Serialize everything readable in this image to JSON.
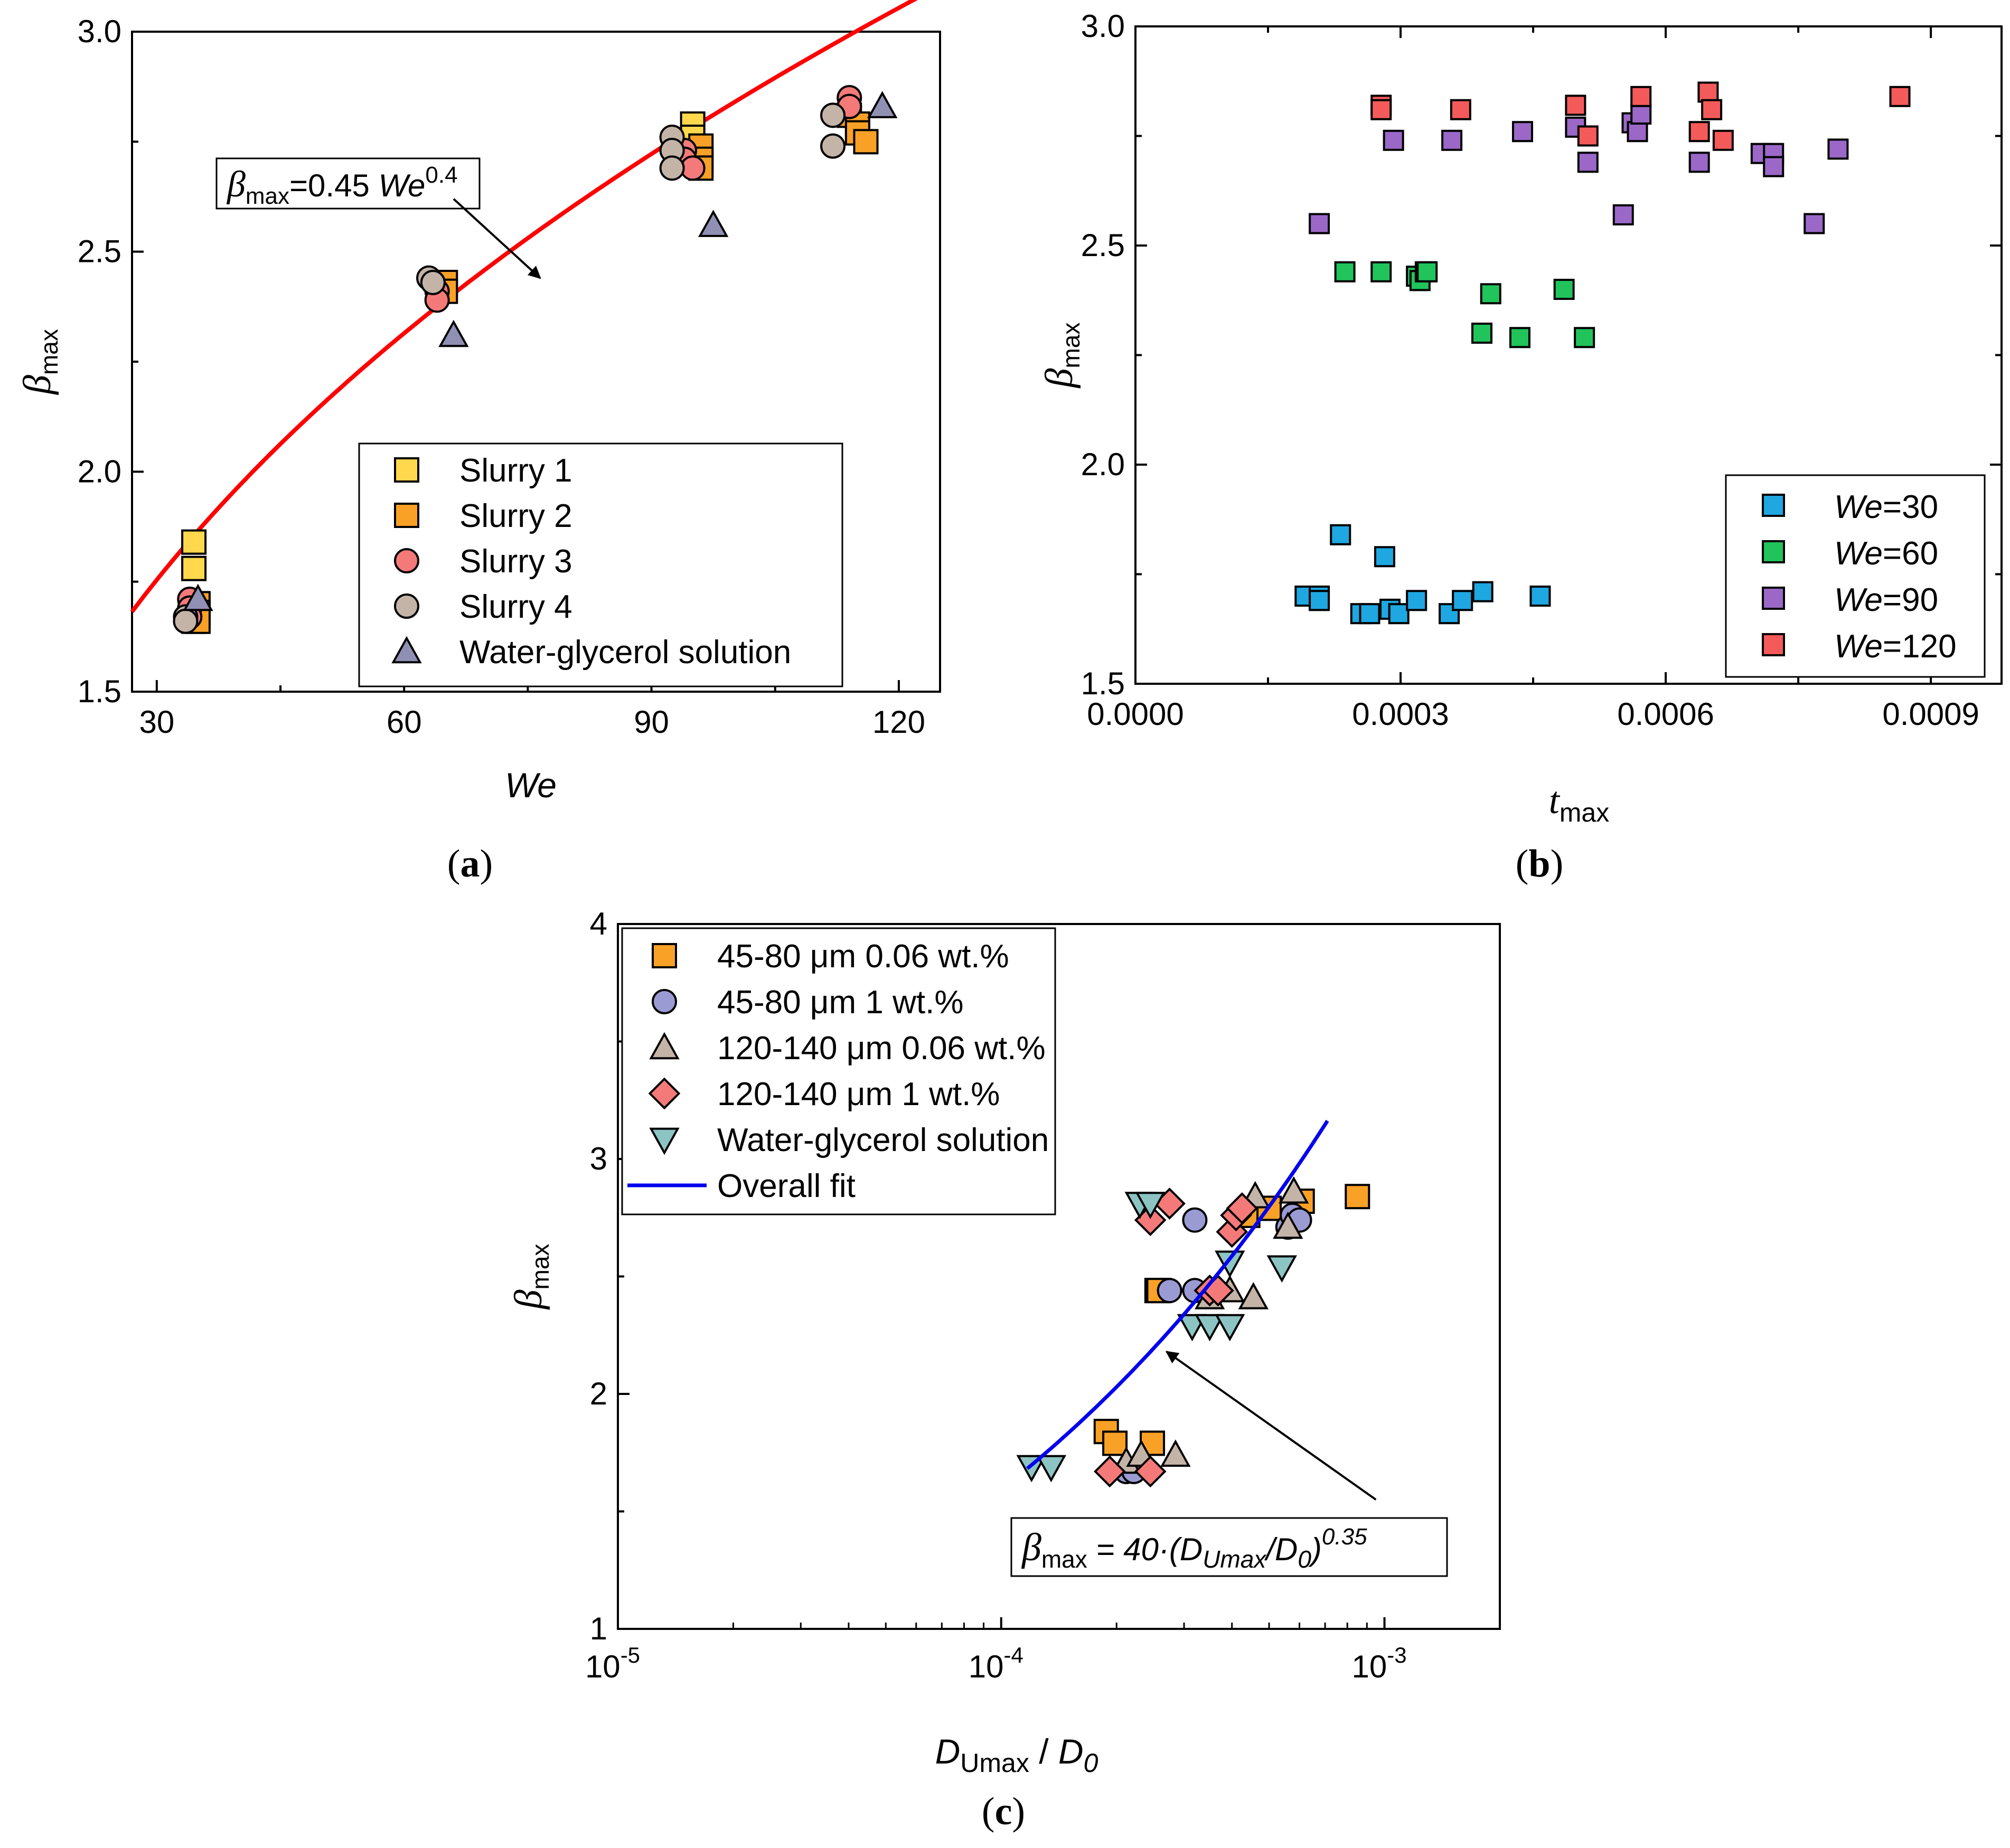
{
  "chart_data": [
    {
      "id": "a",
      "type": "scatter",
      "caption": {
        "open": "(",
        "letter": "a",
        "close": ")"
      },
      "xlabel": "We",
      "ylabel": {
        "main": "β",
        "sub": "max"
      },
      "xlim": [
        27,
        125
      ],
      "ylim": [
        1.5,
        3.0
      ],
      "xticks": [
        "30",
        "60",
        "90",
        "120"
      ],
      "xtick_values": [
        30,
        60,
        90,
        120
      ],
      "yticks": [
        "1.5",
        "2.0",
        "2.5",
        "3.0"
      ],
      "ytick_values": [
        1.5,
        2.0,
        2.5,
        3.0
      ],
      "fit": {
        "label": {
          "beta": "β",
          "sub": "max",
          "eq": "=0.45 ",
          "var": "We",
          "exp": "0.4"
        },
        "coef": 0.45,
        "exponent": 0.4,
        "color": "#ff0000",
        "arrow_from": [
          66,
          2.62
        ],
        "arrow_to": [
          76.5,
          2.44
        ]
      },
      "series": [
        {
          "name": "Slurry 1",
          "marker": "square",
          "color": "#ffd84d",
          "x": [
            34.5,
            34.5,
            34.5,
            95,
            95,
            95
          ],
          "y": [
            1.84,
            1.78,
            1.66,
            2.79,
            2.76,
            2.72
          ]
        },
        {
          "name": "Slurry 2",
          "marker": "square",
          "color": "#f9a126",
          "x": [
            35,
            35,
            35,
            65,
            65,
            96,
            96,
            96,
            114,
            115,
            115,
            116
          ],
          "y": [
            1.7,
            1.68,
            1.66,
            2.43,
            2.41,
            2.74,
            2.71,
            2.69,
            2.81,
            2.79,
            2.77,
            2.75
          ]
        },
        {
          "name": "Slurry 3",
          "marker": "circle",
          "color": "#f47a7a",
          "x": [
            34,
            34,
            34,
            64,
            64,
            94,
            94,
            95,
            114,
            114
          ],
          "y": [
            1.71,
            1.69,
            1.67,
            2.41,
            2.39,
            2.73,
            2.71,
            2.69,
            2.85,
            2.83
          ]
        },
        {
          "name": "Slurry 4",
          "marker": "circle",
          "color": "#c4b4a8",
          "x": [
            33.5,
            33.5,
            63,
            63.5,
            92.5,
            92.5,
            92.5,
            112,
            112
          ],
          "y": [
            1.67,
            1.66,
            2.44,
            2.43,
            2.76,
            2.73,
            2.69,
            2.81,
            2.74
          ]
        },
        {
          "name": "Water-glycerol solution",
          "marker": "triangle-up",
          "color": "#9090b4",
          "x": [
            35,
            66,
            97.5,
            118
          ],
          "y": [
            1.71,
            2.31,
            2.56,
            2.83
          ]
        }
      ],
      "legend_position": "lower-right"
    },
    {
      "id": "b",
      "type": "scatter",
      "caption": {
        "open": "(",
        "letter": "b",
        "close": ")"
      },
      "xlabel": {
        "main": "t",
        "sub": "max"
      },
      "ylabel": {
        "main": "β",
        "sub": "max"
      },
      "xlim": [
        0,
        0.00098
      ],
      "ylim": [
        1.5,
        3.0
      ],
      "xticks": [
        "0.0000",
        "0.0003",
        "0.0006",
        "0.0009"
      ],
      "xtick_values": [
        0,
        0.0003,
        0.0006,
        0.0009
      ],
      "yticks": [
        "1.5",
        "2.0",
        "2.5",
        "3.0"
      ],
      "ytick_values": [
        1.5,
        2.0,
        2.5,
        3.0
      ],
      "series": [
        {
          "name": "30",
          "prefix": "We",
          "eq": "=",
          "marker": "square",
          "color": "#1ea7e1",
          "x": [
            0.000192,
            0.000208,
            0.000208,
            0.000232,
            0.000255,
            0.000265,
            0.000282,
            0.000288,
            0.000298,
            0.000318,
            0.000355,
            0.00037,
            0.000393,
            0.000458
          ],
          "y": [
            1.7,
            1.7,
            1.69,
            1.84,
            1.66,
            1.66,
            1.79,
            1.67,
            1.66,
            1.69,
            1.66,
            1.69,
            1.71,
            1.7
          ]
        },
        {
          "name": "60",
          "prefix": "We",
          "eq": "=",
          "marker": "square",
          "color": "#21c45a",
          "x": [
            0.000237,
            0.000278,
            0.000318,
            0.000322,
            0.000328,
            0.00033,
            0.000392,
            0.000402,
            0.000435,
            0.000485,
            0.000508
          ],
          "y": [
            2.44,
            2.44,
            2.43,
            2.42,
            2.44,
            2.44,
            2.3,
            2.39,
            2.29,
            2.4,
            2.29
          ]
        },
        {
          "name": "90",
          "prefix": "We",
          "eq": "=",
          "marker": "square",
          "color": "#9b68c8",
          "x": [
            0.000208,
            0.000292,
            0.000358,
            0.000438,
            0.000498,
            0.000512,
            0.000552,
            0.000562,
            0.000568,
            0.000572,
            0.000638,
            0.000708,
            0.000722,
            0.000722,
            0.000768,
            0.000795
          ],
          "y": [
            2.55,
            2.74,
            2.74,
            2.76,
            2.77,
            2.69,
            2.57,
            2.78,
            2.76,
            2.8,
            2.69,
            2.71,
            2.71,
            2.68,
            2.55,
            2.72
          ]
        },
        {
          "name": "120",
          "prefix": "We",
          "eq": "=",
          "marker": "square",
          "color": "#f55a5a",
          "x": [
            0.000278,
            0.000278,
            0.000368,
            0.000498,
            0.000512,
            0.000572,
            0.000638,
            0.000648,
            0.000652,
            0.000665,
            0.000865
          ],
          "y": [
            2.82,
            2.81,
            2.81,
            2.82,
            2.75,
            2.84,
            2.76,
            2.85,
            2.81,
            2.74,
            2.84
          ]
        }
      ],
      "legend_position": "lower-right"
    },
    {
      "id": "c",
      "type": "scatter",
      "caption": {
        "open": "(",
        "letter": "c",
        "close": ")"
      },
      "xlabel": {
        "a": "D",
        "a_sub": "Umax",
        "slash": " / ",
        "b": "D",
        "b_sub": "0"
      },
      "ylabel": {
        "main": "β",
        "sub": "max"
      },
      "xscale": "log",
      "xlim": [
        1e-05,
        0.002
      ],
      "ylim": [
        1,
        4
      ],
      "xticks": [
        {
          "base": "10",
          "exp": "-5",
          "value": 1e-05
        },
        {
          "base": "10",
          "exp": "-4",
          "value": 0.0001
        },
        {
          "base": "10",
          "exp": "-3",
          "value": 0.001
        }
      ],
      "yticks": [
        "1",
        "2",
        "3",
        "4"
      ],
      "ytick_values": [
        1,
        2,
        3,
        4
      ],
      "fit": {
        "coef": 40,
        "exponent": 0.35,
        "color": "#0000ee",
        "legend_label": "Overall fit",
        "label": {
          "beta": "β",
          "sub": "max",
          "eq": " = 40·(",
          "d1": "D",
          "d1_sub": "Umax",
          "slash": "/",
          "d2": "D",
          "d2_sub": "0",
          "close": ")",
          "exp": "0.35"
        },
        "arrow_from": [
          0.00095,
          1.55
        ],
        "arrow_to": [
          0.00027,
          2.18
        ],
        "x_range": [
          0.000117,
          0.00071
        ]
      },
      "series": [
        {
          "name": "45-80 μm 0.06 wt.%",
          "marker": "square",
          "color": "#f9a126",
          "x": [
            0.000188,
            0.000198,
            0.000248,
            0.000255,
            0.000258,
            0.00044,
            0.0005,
            0.00061,
            0.00085
          ],
          "y": [
            1.84,
            1.79,
            1.79,
            2.44,
            2.44,
            2.76,
            2.79,
            2.82,
            2.84
          ]
        },
        {
          "name": "45-80 μm 1 wt.%",
          "marker": "circle",
          "color": "#9b9bd4",
          "x": [
            0.000212,
            0.000222,
            0.000275,
            0.00032,
            0.00032,
            0.000355,
            0.00056,
            0.000575,
            0.0006
          ],
          "y": [
            1.67,
            1.67,
            2.44,
            2.44,
            2.74,
            2.44,
            2.71,
            2.76,
            2.74
          ]
        },
        {
          "name": "120-140 μm 0.06 wt.%",
          "marker": "triangle-up",
          "color": "#c4b4a8",
          "x": [
            0.000212,
            0.000232,
            0.000285,
            0.00035,
            0.000395,
            0.000455,
            0.00046,
            0.00056,
            0.00058
          ],
          "y": [
            1.71,
            1.74,
            1.74,
            2.41,
            2.44,
            2.41,
            2.84,
            2.71,
            2.86
          ]
        },
        {
          "name": "120-140 μm 1 wt.%",
          "marker": "diamond",
          "color": "#f47a7a",
          "x": [
            0.000192,
            0.000245,
            0.000245,
            0.000275,
            0.00035,
            0.000368,
            0.0004,
            0.00041,
            0.000425
          ],
          "y": [
            1.67,
            1.67,
            2.74,
            2.81,
            2.44,
            2.44,
            2.69,
            2.76,
            2.79
          ]
        },
        {
          "name": "Water-glycerol solution",
          "marker": "triangle-down",
          "color": "#8cc4c4",
          "x": [
            0.00012,
            0.000135,
            0.00023,
            0.000245,
            0.000315,
            0.00035,
            0.000395,
            0.000395,
            0.00054
          ],
          "y": [
            1.69,
            1.69,
            2.81,
            2.81,
            2.29,
            2.29,
            2.29,
            2.56,
            2.54
          ]
        }
      ],
      "legend_position": "top-left"
    }
  ]
}
